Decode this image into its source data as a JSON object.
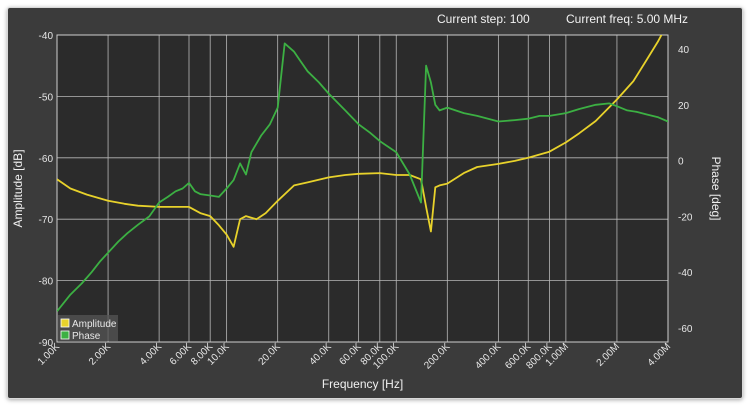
{
  "status": {
    "step_text": "Current step: 100",
    "freq_text": "Current freq: 5.00 MHz"
  },
  "chart_data": {
    "type": "line",
    "xlabel": "Frequency [Hz]",
    "ylabel_left": "Amplitude [dB]",
    "ylabel_right": "Phase [deg]",
    "x_scale": "log",
    "xlim": [
      1000,
      4000000
    ],
    "ylim_left": [
      -90,
      -40
    ],
    "ylim_right": [
      -65,
      45
    ],
    "grid": true,
    "legend_position": "bottom-left",
    "x_ticks": [
      {
        "value": 1000,
        "label": "1.00K"
      },
      {
        "value": 2000,
        "label": "2.00K"
      },
      {
        "value": 4000,
        "label": "4.00K"
      },
      {
        "value": 6000,
        "label": "6.00K"
      },
      {
        "value": 8000,
        "label": "8.00K"
      },
      {
        "value": 10000,
        "label": "10.0K"
      },
      {
        "value": 20000,
        "label": "20.0K"
      },
      {
        "value": 40000,
        "label": "40.0K"
      },
      {
        "value": 60000,
        "label": "60.0K"
      },
      {
        "value": 80000,
        "label": "80.0K"
      },
      {
        "value": 100000,
        "label": "100.0K"
      },
      {
        "value": 200000,
        "label": "200.0K"
      },
      {
        "value": 400000,
        "label": "400.0K"
      },
      {
        "value": 600000,
        "label": "600.0K"
      },
      {
        "value": 800000,
        "label": "800.0K"
      },
      {
        "value": 1000000,
        "label": "1.00M"
      },
      {
        "value": 2000000,
        "label": "2.00M"
      },
      {
        "value": 4000000,
        "label": "4.00M"
      }
    ],
    "y_ticks_left": [
      -40,
      -50,
      -60,
      -70,
      -80,
      -90
    ],
    "y_ticks_right": [
      40,
      20,
      0,
      -20,
      -40,
      -60
    ],
    "series": [
      {
        "name": "Amplitude",
        "axis": "left",
        "color": "#e8d22b",
        "x": [
          1000,
          1200,
          1500,
          2000,
          2500,
          3000,
          4000,
          5000,
          6000,
          7000,
          8000,
          9000,
          10000,
          11000,
          12000,
          13000,
          15000,
          17000,
          20000,
          25000,
          30000,
          40000,
          50000,
          60000,
          80000,
          100000,
          120000,
          140000,
          150000,
          160000,
          170000,
          180000,
          200000,
          250000,
          300000,
          400000,
          500000,
          600000,
          800000,
          1000000,
          1200000,
          1500000,
          2000000,
          2500000,
          3000000,
          3500000,
          4000000
        ],
        "values": [
          -63.5,
          -65.0,
          -66.0,
          -67.0,
          -67.5,
          -67.8,
          -68.0,
          -68.0,
          -68.0,
          -69.0,
          -69.5,
          -71.0,
          -72.5,
          -74.5,
          -70.0,
          -69.5,
          -70.0,
          -69.0,
          -67.0,
          -64.5,
          -64.0,
          -63.2,
          -62.8,
          -62.6,
          -62.5,
          -62.8,
          -62.8,
          -63.5,
          -68.0,
          -72.0,
          -64.8,
          -64.5,
          -64.2,
          -62.5,
          -61.5,
          -61.0,
          -60.5,
          -60.0,
          -59.0,
          -57.5,
          -56.0,
          -54.0,
          -50.5,
          -47.5,
          -44.0,
          -41.0,
          -38.0
        ]
      },
      {
        "name": "Phase",
        "axis": "right",
        "color": "#3cb043",
        "x": [
          1000,
          1200,
          1400,
          1600,
          1800,
          2000,
          2300,
          2600,
          3000,
          3500,
          4000,
          4500,
          5000,
          5500,
          6000,
          6500,
          7000,
          8000,
          9000,
          10000,
          11000,
          12000,
          13000,
          14000,
          16000,
          18000,
          20000,
          22000,
          25000,
          27000,
          30000,
          35000,
          40000,
          50000,
          60000,
          70000,
          80000,
          100000,
          120000,
          140000,
          150000,
          160000,
          170000,
          180000,
          200000,
          250000,
          300000,
          400000,
          500000,
          600000,
          700000,
          800000,
          1000000,
          1200000,
          1500000,
          1800000,
          2000000,
          2300000,
          2600000,
          3000000,
          3500000,
          4000000
        ],
        "values": [
          -54,
          -48,
          -44,
          -40,
          -36,
          -33,
          -29,
          -26,
          -23,
          -20,
          -15,
          -13,
          -11,
          -10,
          -8,
          -11,
          -12,
          -12.5,
          -13,
          -10,
          -7,
          -1,
          -5,
          3,
          9,
          13,
          19,
          42,
          39,
          36,
          32,
          28,
          24,
          18,
          13,
          10,
          7,
          3,
          -5,
          -15,
          34,
          28,
          20,
          18,
          19,
          17,
          16,
          14,
          14.5,
          15,
          16,
          16,
          17,
          18.5,
          20,
          20.5,
          19.5,
          18,
          17.5,
          16.5,
          15.5,
          14
        ]
      }
    ]
  }
}
